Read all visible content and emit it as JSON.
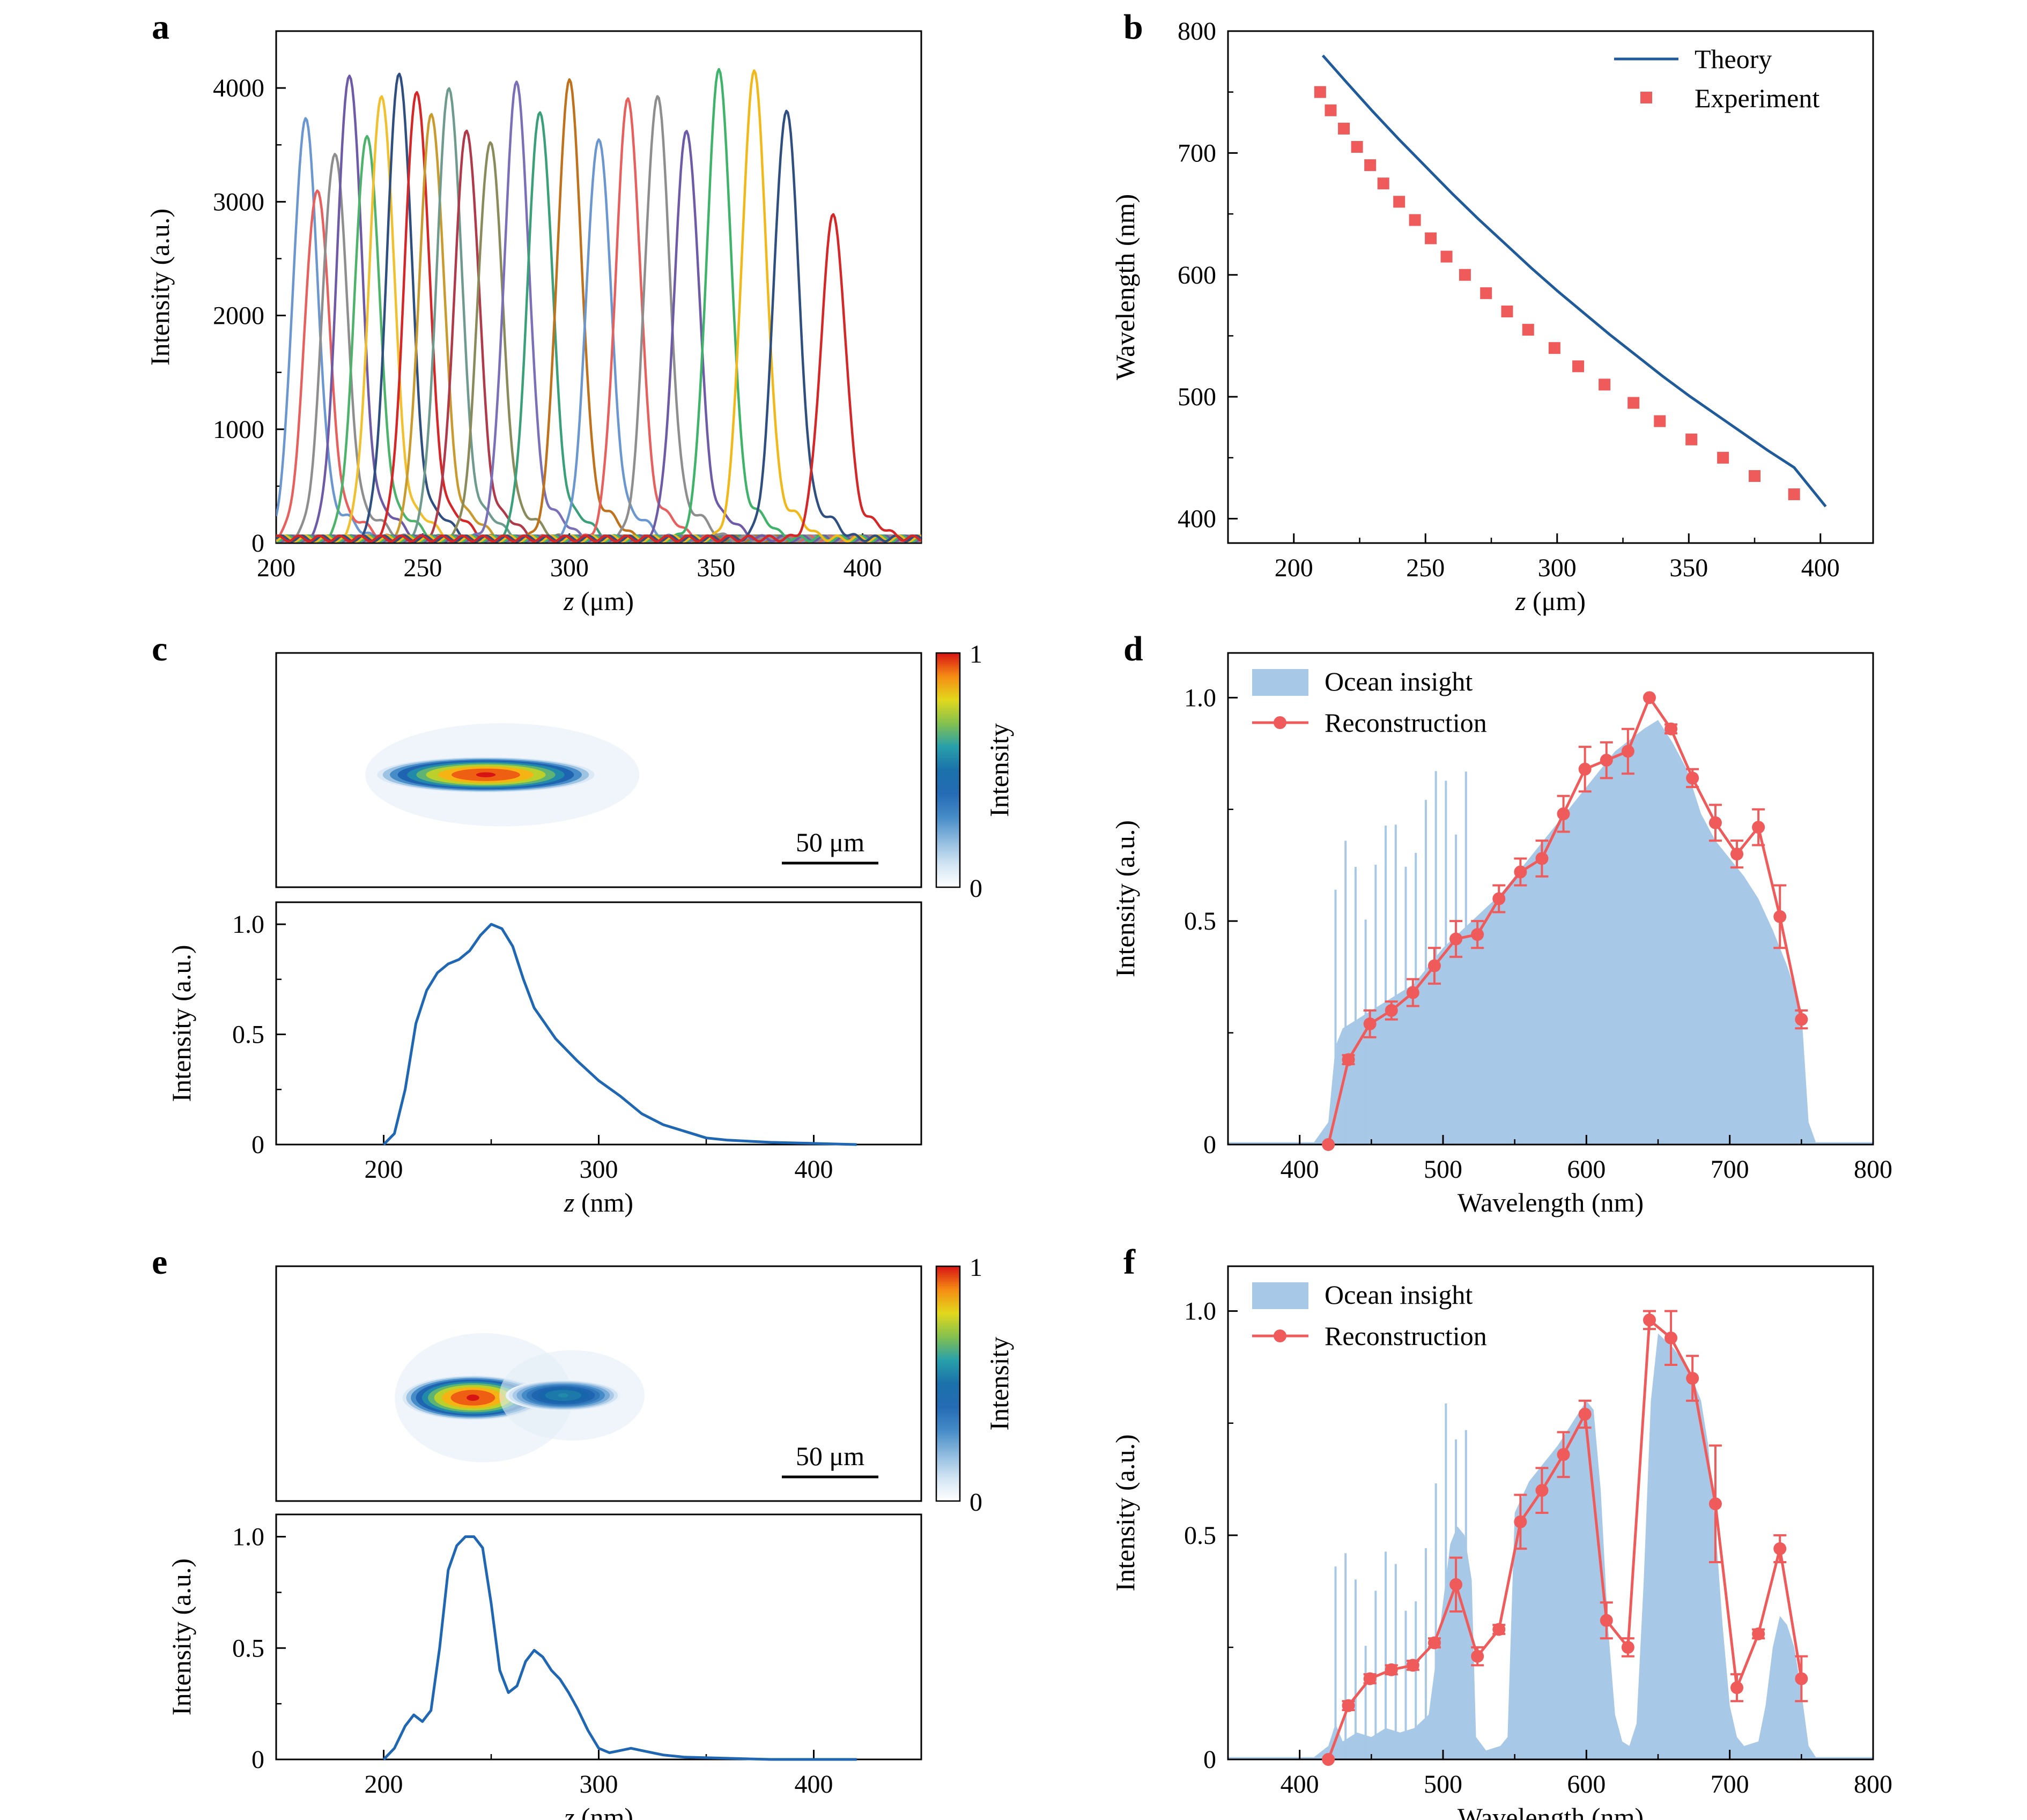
{
  "chart_data": [
    {
      "panel": "a",
      "type": "line",
      "xlabel_italic": "z",
      "xlabel_rest": " (μm)",
      "ylabel": "Intensity (a.u.)",
      "xlim": [
        200,
        420
      ],
      "ylim": [
        0,
        4500
      ],
      "xticks": [
        200,
        250,
        300,
        350,
        400
      ],
      "yticks": [
        0,
        1000,
        2000,
        3000,
        4000
      ],
      "grid": false,
      "peak_width_um": 4.2,
      "series": [
        {
          "peak_z": 210,
          "peak": 3680,
          "color": "#6a97cf"
        },
        {
          "peak_z": 214,
          "peak": 3080,
          "color": "#e8605e"
        },
        {
          "peak_z": 220,
          "peak": 3400,
          "color": "#8e8e8e"
        },
        {
          "peak_z": 225,
          "peak": 4090,
          "color": "#6f5aa8"
        },
        {
          "peak_z": 231,
          "peak": 3560,
          "color": "#4db36a"
        },
        {
          "peak_z": 236,
          "peak": 3900,
          "color": "#f1c02e"
        },
        {
          "peak_z": 242,
          "peak": 4100,
          "color": "#2f4f80"
        },
        {
          "peak_z": 248,
          "peak": 3940,
          "color": "#d62728"
        },
        {
          "peak_z": 253,
          "peak": 3730,
          "color": "#c99a2e"
        },
        {
          "peak_z": 259,
          "peak": 3960,
          "color": "#6f9a8e"
        },
        {
          "peak_z": 265,
          "peak": 3590,
          "color": "#b03a4a"
        },
        {
          "peak_z": 273,
          "peak": 3500,
          "color": "#8a8a5a"
        },
        {
          "peak_z": 282,
          "peak": 3990,
          "color": "#7b6fb8"
        },
        {
          "peak_z": 290,
          "peak": 3760,
          "color": "#3aa07a"
        },
        {
          "peak_z": 300,
          "peak": 4010,
          "color": "#c0711c"
        },
        {
          "peak_z": 310,
          "peak": 3530,
          "color": "#6a97cf"
        },
        {
          "peak_z": 320,
          "peak": 3850,
          "color": "#e8605e"
        },
        {
          "peak_z": 330,
          "peak": 3890,
          "color": "#8e8e8e"
        },
        {
          "peak_z": 340,
          "peak": 3590,
          "color": "#6f5aa8"
        },
        {
          "peak_z": 351,
          "peak": 4100,
          "color": "#3fb36a"
        },
        {
          "peak_z": 363,
          "peak": 4090,
          "color": "#f1b81a"
        },
        {
          "peak_z": 374,
          "peak": 3770,
          "color": "#2f4f80"
        },
        {
          "peak_z": 390,
          "peak": 2830,
          "color": "#d62728"
        }
      ]
    },
    {
      "panel": "b",
      "type": "scatter",
      "xlabel_italic": "z",
      "xlabel_rest": " (μm)",
      "ylabel": "Wavelength (nm)",
      "xlim": [
        175,
        420
      ],
      "ylim": [
        380,
        800
      ],
      "xticks": [
        200,
        250,
        300,
        350,
        400
      ],
      "yticks": [
        400,
        500,
        600,
        700,
        800
      ],
      "legend_position": "top-right",
      "theory": {
        "name": "Theory",
        "color": "#1f5a9a",
        "x": [
          211,
          220,
          230,
          240,
          250,
          260,
          270,
          280,
          290,
          300,
          310,
          320,
          330,
          340,
          350,
          360,
          370,
          380,
          390,
          402
        ],
        "y": [
          780,
          758,
          734,
          711,
          689,
          667,
          646,
          626,
          606,
          587,
          569,
          551,
          534,
          517,
          501,
          486,
          471,
          456,
          442,
          410
        ]
      },
      "experiment": {
        "name": "Experiment",
        "color": "#ef5b5b",
        "x": [
          210,
          214,
          219,
          224,
          229,
          234,
          240,
          246,
          252,
          258,
          265,
          273,
          281,
          289,
          299,
          308,
          318,
          329,
          339,
          351,
          363,
          375,
          390
        ],
        "y": [
          750,
          735,
          720,
          705,
          690,
          675,
          660,
          645,
          630,
          615,
          600,
          585,
          570,
          555,
          540,
          525,
          510,
          495,
          480,
          465,
          450,
          435,
          420
        ]
      }
    },
    {
      "panel": "c",
      "type": "heatmap",
      "colorbar_label": "Intensity",
      "colorbar_ticks": [
        "1",
        "0"
      ],
      "scalebar_label": "50 μm",
      "spots": [
        {
          "x_frac": 0.325,
          "y_frac": 0.52,
          "rx": 0.17,
          "ry": 0.04,
          "strength": 1.0
        }
      ]
    },
    {
      "panel": "c-lower",
      "type": "line",
      "xlabel_italic": "z",
      "xlabel_rest": " (nm)",
      "ylabel": "Intensity (a.u.)",
      "xlim": [
        150,
        450
      ],
      "ylim": [
        0,
        1.1
      ],
      "xticks": [
        200,
        300,
        400
      ],
      "yticks": [
        0,
        0.5,
        1.0
      ],
      "ytick_labels": [
        "0",
        "0.5",
        "1.0"
      ],
      "color": "#1f66b3",
      "x": [
        200,
        205,
        210,
        215,
        220,
        225,
        230,
        235,
        240,
        245,
        250,
        255,
        260,
        265,
        270,
        275,
        280,
        290,
        300,
        310,
        320,
        330,
        340,
        350,
        360,
        380,
        400,
        420
      ],
      "y": [
        0.0,
        0.05,
        0.25,
        0.55,
        0.7,
        0.78,
        0.82,
        0.84,
        0.88,
        0.95,
        1.0,
        0.98,
        0.9,
        0.75,
        0.62,
        0.55,
        0.48,
        0.38,
        0.29,
        0.22,
        0.14,
        0.09,
        0.06,
        0.03,
        0.02,
        0.01,
        0.005,
        0.0
      ]
    },
    {
      "panel": "d",
      "type": "area",
      "xlabel": "Wavelength (nm)",
      "ylabel": "Intensity (a.u.)",
      "xlim": [
        350,
        800
      ],
      "ylim": [
        0,
        1.1
      ],
      "xticks": [
        400,
        500,
        600,
        700,
        800
      ],
      "yticks": [
        0,
        0.5,
        1.0
      ],
      "ytick_labels": [
        "0",
        "0.5",
        "1.0"
      ],
      "legend_position": "top-left",
      "ocean": {
        "name": "Ocean insight",
        "color": "#a7c8e6",
        "x": [
          350,
          410,
          420,
          425,
          430,
          440,
          450,
          460,
          470,
          480,
          490,
          500,
          520,
          540,
          560,
          580,
          600,
          620,
          640,
          650,
          660,
          670,
          680,
          690,
          700,
          710,
          720,
          730,
          740,
          745,
          750,
          755,
          760,
          800
        ],
        "y": [
          0.005,
          0.005,
          0.05,
          0.22,
          0.26,
          0.28,
          0.3,
          0.32,
          0.34,
          0.36,
          0.4,
          0.44,
          0.5,
          0.56,
          0.64,
          0.72,
          0.8,
          0.88,
          0.93,
          0.95,
          0.9,
          0.84,
          0.74,
          0.68,
          0.64,
          0.6,
          0.55,
          0.48,
          0.4,
          0.35,
          0.3,
          0.05,
          0.005,
          0.005
        ]
      },
      "reconstruction": {
        "name": "Reconstruction",
        "color": "#ef5b5b",
        "x": [
          420,
          434,
          449,
          464,
          479,
          494,
          509,
          524,
          539,
          554,
          569,
          584,
          599,
          614,
          629,
          644,
          659,
          674,
          690,
          705,
          720,
          735,
          750
        ],
        "y": [
          0.0,
          0.19,
          0.27,
          0.3,
          0.34,
          0.4,
          0.46,
          0.47,
          0.55,
          0.61,
          0.64,
          0.74,
          0.84,
          0.86,
          0.88,
          1.0,
          0.93,
          0.82,
          0.72,
          0.65,
          0.71,
          0.51,
          0.28
        ],
        "err": [
          0.0,
          0.01,
          0.03,
          0.02,
          0.03,
          0.04,
          0.04,
          0.03,
          0.03,
          0.03,
          0.04,
          0.04,
          0.05,
          0.04,
          0.05,
          0.0,
          0.01,
          0.02,
          0.04,
          0.03,
          0.04,
          0.07,
          0.02
        ]
      }
    },
    {
      "panel": "e",
      "type": "heatmap",
      "colorbar_label": "Intensity",
      "colorbar_ticks": [
        "1",
        "0"
      ],
      "scalebar_label": "50 μm",
      "spots": [
        {
          "x_frac": 0.305,
          "y_frac": 0.56,
          "rx": 0.11,
          "ry": 0.05,
          "strength": 1.0
        },
        {
          "x_frac": 0.445,
          "y_frac": 0.55,
          "rx": 0.09,
          "ry": 0.035,
          "strength": 0.55
        }
      ]
    },
    {
      "panel": "e-lower",
      "type": "line",
      "xlabel_italic": "z",
      "xlabel_rest": " (nm)",
      "ylabel": "Intensity (a.u.)",
      "xlim": [
        150,
        450
      ],
      "ylim": [
        0,
        1.1
      ],
      "xticks": [
        200,
        300,
        400
      ],
      "yticks": [
        0,
        0.5,
        1.0
      ],
      "ytick_labels": [
        "0",
        "0.5",
        "1.0"
      ],
      "color": "#1f66b3",
      "x": [
        200,
        205,
        210,
        214,
        218,
        222,
        226,
        230,
        234,
        238,
        242,
        246,
        250,
        254,
        258,
        262,
        266,
        270,
        274,
        278,
        282,
        286,
        290,
        295,
        300,
        305,
        310,
        315,
        320,
        330,
        340,
        360,
        380,
        400,
        420
      ],
      "y": [
        0.0,
        0.05,
        0.15,
        0.2,
        0.17,
        0.22,
        0.5,
        0.85,
        0.96,
        1.0,
        1.0,
        0.95,
        0.7,
        0.4,
        0.3,
        0.33,
        0.44,
        0.49,
        0.46,
        0.4,
        0.36,
        0.3,
        0.23,
        0.13,
        0.05,
        0.03,
        0.04,
        0.05,
        0.04,
        0.02,
        0.01,
        0.005,
        0.0,
        0.0,
        0.0
      ]
    },
    {
      "panel": "f",
      "type": "area",
      "xlabel": "Wavelength (nm)",
      "ylabel": "Intensity (a.u.)",
      "xlim": [
        350,
        800
      ],
      "ylim": [
        0,
        1.1
      ],
      "xticks": [
        400,
        500,
        600,
        700,
        800
      ],
      "yticks": [
        0,
        0.5,
        1.0
      ],
      "ytick_labels": [
        "0",
        "0.5",
        "1.0"
      ],
      "legend_position": "top-left",
      "ocean": {
        "name": "Ocean insight",
        "color": "#a7c8e6",
        "x": [
          350,
          410,
          420,
          425,
          430,
          440,
          450,
          460,
          470,
          480,
          490,
          495,
          500,
          505,
          510,
          515,
          520,
          523,
          530,
          540,
          545,
          550,
          560,
          570,
          580,
          590,
          600,
          605,
          610,
          615,
          620,
          625,
          630,
          635,
          640,
          645,
          650,
          660,
          670,
          680,
          685,
          690,
          695,
          700,
          705,
          710,
          720,
          725,
          730,
          735,
          740,
          745,
          750,
          755,
          760,
          800
        ],
        "y": [
          0.005,
          0.005,
          0.03,
          0.08,
          0.04,
          0.06,
          0.05,
          0.07,
          0.06,
          0.07,
          0.1,
          0.22,
          0.35,
          0.48,
          0.52,
          0.5,
          0.4,
          0.05,
          0.02,
          0.03,
          0.05,
          0.55,
          0.62,
          0.66,
          0.7,
          0.75,
          0.8,
          0.78,
          0.6,
          0.3,
          0.1,
          0.04,
          0.03,
          0.08,
          0.4,
          0.8,
          0.95,
          0.92,
          0.88,
          0.8,
          0.7,
          0.52,
          0.3,
          0.12,
          0.05,
          0.03,
          0.04,
          0.12,
          0.25,
          0.32,
          0.3,
          0.25,
          0.15,
          0.03,
          0.005,
          0.005
        ]
      },
      "reconstruction": {
        "name": "Reconstruction",
        "color": "#ef5b5b",
        "x": [
          420,
          434,
          449,
          464,
          479,
          494,
          509,
          524,
          539,
          554,
          569,
          584,
          599,
          614,
          629,
          644,
          659,
          674,
          690,
          705,
          720,
          735,
          750
        ],
        "y": [
          0.0,
          0.12,
          0.18,
          0.2,
          0.21,
          0.26,
          0.39,
          0.23,
          0.29,
          0.53,
          0.6,
          0.68,
          0.77,
          0.31,
          0.25,
          0.98,
          0.94,
          0.85,
          0.57,
          0.16,
          0.28,
          0.47,
          0.18
        ],
        "err": [
          0.0,
          0.01,
          0.01,
          0.01,
          0.01,
          0.01,
          0.06,
          0.02,
          0.01,
          0.06,
          0.05,
          0.05,
          0.03,
          0.04,
          0.02,
          0.02,
          0.06,
          0.05,
          0.13,
          0.03,
          0.01,
          0.03,
          0.05
        ]
      }
    }
  ]
}
